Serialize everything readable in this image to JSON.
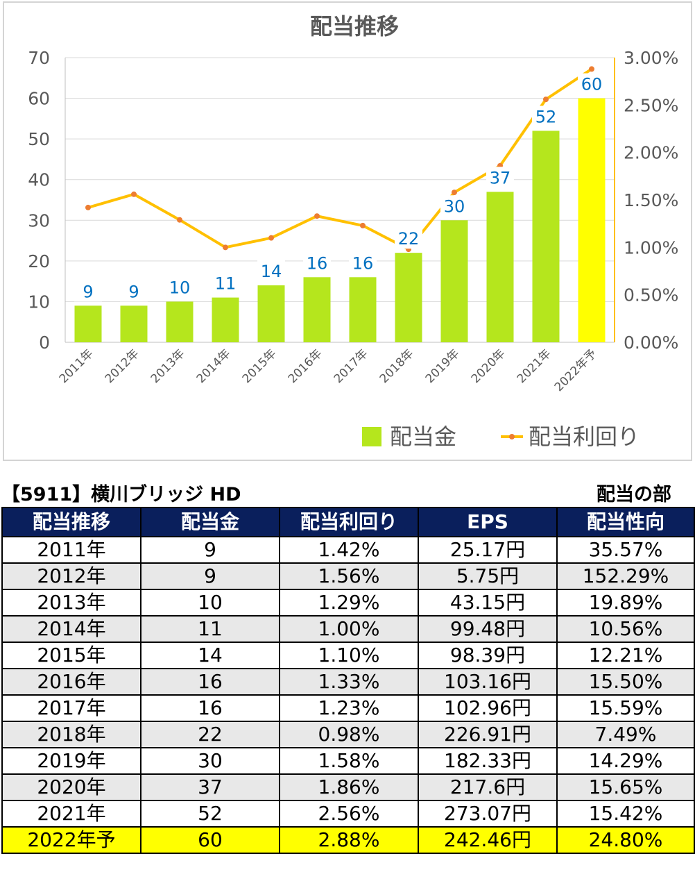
{
  "chart_data": {
    "type": "bar+line",
    "title": "配当推移",
    "categories": [
      "2011年",
      "2012年",
      "2013年",
      "2014年",
      "2015年",
      "2016年",
      "2017年",
      "2018年",
      "2019年",
      "2020年",
      "2021年",
      "2022年予"
    ],
    "series": [
      {
        "name": "配当金",
        "type": "bar",
        "axis": "left",
        "values": [
          9,
          9,
          10,
          11,
          14,
          16,
          16,
          22,
          30,
          37,
          52,
          60
        ],
        "color": "#b5e61d",
        "highlight_last_color": "#ffff00"
      },
      {
        "name": "配当利回り",
        "type": "line",
        "axis": "right",
        "values": [
          1.42,
          1.56,
          1.29,
          1.0,
          1.1,
          1.33,
          1.23,
          0.98,
          1.58,
          1.86,
          2.56,
          2.88
        ],
        "color": "#ffc000",
        "marker_color": "#ed7d31"
      }
    ],
    "data_labels": [
      "9",
      "9",
      "10",
      "11",
      "14",
      "16",
      "16",
      "22",
      "30",
      "37",
      "52",
      "60"
    ],
    "left_axis": {
      "min": 0,
      "max": 70,
      "ticks": [
        "0",
        "10",
        "20",
        "30",
        "40",
        "50",
        "60",
        "70"
      ]
    },
    "right_axis": {
      "min": 0,
      "max": 3,
      "ticks": [
        "0.00%",
        "0.50%",
        "1.00%",
        "1.50%",
        "2.00%",
        "2.50%",
        "3.00%"
      ]
    },
    "grid": true,
    "legend_position": "bottom-right"
  },
  "table": {
    "title": "【5911】横川ブリッジ HD",
    "subtitle": "配当の部",
    "headers": [
      "配当推移",
      "配当金",
      "配当利回り",
      "EPS",
      "配当性向"
    ],
    "rows": [
      [
        "2011年",
        "9",
        "1.42%",
        "25.17円",
        "35.57%"
      ],
      [
        "2012年",
        "9",
        "1.56%",
        "5.75円",
        "152.29%"
      ],
      [
        "2013年",
        "10",
        "1.29%",
        "43.15円",
        "19.89%"
      ],
      [
        "2014年",
        "11",
        "1.00%",
        "99.48円",
        "10.56%"
      ],
      [
        "2015年",
        "14",
        "1.10%",
        "98.39円",
        "12.21%"
      ],
      [
        "2016年",
        "16",
        "1.33%",
        "103.16円",
        "15.50%"
      ],
      [
        "2017年",
        "16",
        "1.23%",
        "102.96円",
        "15.59%"
      ],
      [
        "2018年",
        "22",
        "0.98%",
        "226.91円",
        "7.49%"
      ],
      [
        "2019年",
        "30",
        "1.58%",
        "182.33円",
        "14.29%"
      ],
      [
        "2020年",
        "37",
        "1.86%",
        "217.6円",
        "15.65%"
      ],
      [
        "2021年",
        "52",
        "2.56%",
        "273.07円",
        "15.42%"
      ],
      [
        "2022年予",
        "60",
        "2.88%",
        "242.46円",
        "24.80%"
      ]
    ],
    "highlight_color": "#ffff00",
    "header_color": "#0a1f5c",
    "alt_row_color": "#e8e8e8"
  }
}
